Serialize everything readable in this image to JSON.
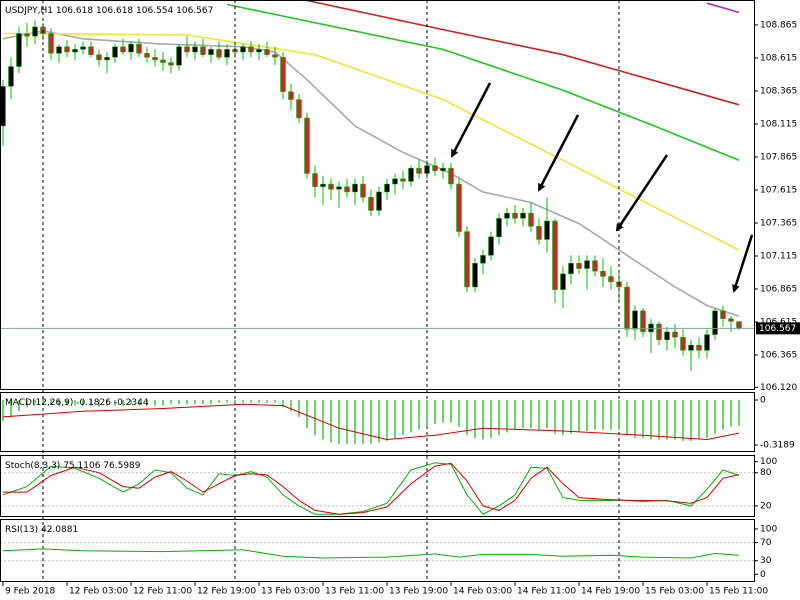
{
  "chart_data": [
    {
      "type": "candlestick",
      "title": "USDJPY,H1",
      "up_color": "#000000",
      "down_color": "#b8321f",
      "wick_color": "#00c000",
      "price_line_color": "#7fa39a",
      "xlim": [
        -0.375,
        94
      ],
      "ylim": [
        106.1,
        109.054
      ],
      "yticks": [
        108.865,
        108.615,
        108.365,
        108.115,
        107.865,
        107.615,
        107.365,
        107.115,
        106.865,
        106.615,
        106.365,
        {
          "value": 106.12,
          "label": "106.120"
        }
      ],
      "xticks": [
        {
          "value": 0,
          "label": "9 Feb 2018"
        },
        {
          "value": 8,
          "label": "12 Feb 03:00"
        },
        {
          "value": 16,
          "label": "12 Feb 11:00"
        },
        {
          "value": 24,
          "label": "12 Feb 19:00"
        },
        {
          "value": 32,
          "label": "13 Feb 03:00"
        },
        {
          "value": 40,
          "label": "13 Feb 11:00"
        },
        {
          "value": 48,
          "label": "13 Feb 19:00"
        },
        {
          "value": 56,
          "label": "14 Feb 03:00"
        },
        {
          "value": 64,
          "label": "14 Feb 11:00"
        },
        {
          "value": 72,
          "label": "14 Feb 19:00"
        },
        {
          "value": 80,
          "label": "15 Feb 03:00"
        },
        {
          "value": 88,
          "label": "15 Feb 11:00"
        }
      ],
      "day_separators": [
        5,
        29,
        53,
        77
      ],
      "candles": [
        [
          108.1,
          108.45,
          107.95,
          108.4
        ],
        [
          108.4,
          108.62,
          108.3,
          108.55
        ],
        [
          108.55,
          108.85,
          108.5,
          108.8
        ],
        [
          108.8,
          108.88,
          108.7,
          108.78
        ],
        [
          108.78,
          108.9,
          108.72,
          108.85
        ],
        [
          108.85,
          108.88,
          108.75,
          108.8
        ],
        [
          108.8,
          108.84,
          108.6,
          108.65
        ],
        [
          108.65,
          108.72,
          108.58,
          108.7
        ],
        [
          108.7,
          108.75,
          108.62,
          108.66
        ],
        [
          108.66,
          108.72,
          108.6,
          108.68
        ],
        [
          108.68,
          108.74,
          108.64,
          108.7
        ],
        [
          108.7,
          108.74,
          108.62,
          108.64
        ],
        [
          108.64,
          108.68,
          108.55,
          108.6
        ],
        [
          108.6,
          108.66,
          108.5,
          108.62
        ],
        [
          108.62,
          108.72,
          108.58,
          108.7
        ],
        [
          108.7,
          108.76,
          108.64,
          108.66
        ],
        [
          108.66,
          108.74,
          108.6,
          108.72
        ],
        [
          108.72,
          108.76,
          108.62,
          108.65
        ],
        [
          108.65,
          108.7,
          108.58,
          108.62
        ],
        [
          108.62,
          108.68,
          108.55,
          108.6
        ],
        [
          108.6,
          108.66,
          108.52,
          108.58
        ],
        [
          108.58,
          108.62,
          108.5,
          108.56
        ],
        [
          108.56,
          108.72,
          108.52,
          108.7
        ],
        [
          108.7,
          108.78,
          108.62,
          108.66
        ],
        [
          108.66,
          108.74,
          108.6,
          108.7
        ],
        [
          108.7,
          108.76,
          108.62,
          108.64
        ],
        [
          108.64,
          108.7,
          108.58,
          108.68
        ],
        [
          108.68,
          108.74,
          108.6,
          108.62
        ],
        [
          108.62,
          108.72,
          108.56,
          108.68
        ],
        [
          108.68,
          108.74,
          108.62,
          108.66
        ],
        [
          108.66,
          108.72,
          108.6,
          108.7
        ],
        [
          108.7,
          108.74,
          108.62,
          108.66
        ],
        [
          108.66,
          108.72,
          108.6,
          108.68
        ],
        [
          108.68,
          108.74,
          108.62,
          108.64
        ],
        [
          108.64,
          108.7,
          108.56,
          108.62
        ],
        [
          108.62,
          108.66,
          108.3,
          108.36
        ],
        [
          108.36,
          108.42,
          108.22,
          108.3
        ],
        [
          108.3,
          108.34,
          108.12,
          108.16
        ],
        [
          108.16,
          108.2,
          107.7,
          107.74
        ],
        [
          107.74,
          107.8,
          107.56,
          107.64
        ],
        [
          107.64,
          107.72,
          107.5,
          107.66
        ],
        [
          107.66,
          107.7,
          107.54,
          107.62
        ],
        [
          107.62,
          107.68,
          107.48,
          107.64
        ],
        [
          107.64,
          107.7,
          107.56,
          107.6
        ],
        [
          107.6,
          107.7,
          107.5,
          107.66
        ],
        [
          107.66,
          107.72,
          107.52,
          107.56
        ],
        [
          107.56,
          107.62,
          107.42,
          107.46
        ],
        [
          107.46,
          107.64,
          107.42,
          107.6
        ],
        [
          107.6,
          107.7,
          107.54,
          107.66
        ],
        [
          107.66,
          107.74,
          107.58,
          107.7
        ],
        [
          107.7,
          107.76,
          107.62,
          107.68
        ],
        [
          107.68,
          107.8,
          107.64,
          107.78
        ],
        [
          107.78,
          107.84,
          107.7,
          107.74
        ],
        [
          107.74,
          107.84,
          107.7,
          107.8
        ],
        [
          107.8,
          107.86,
          107.72,
          107.76
        ],
        [
          107.76,
          107.82,
          107.7,
          107.78
        ],
        [
          107.78,
          107.82,
          107.62,
          107.66
        ],
        [
          107.66,
          107.7,
          107.26,
          107.3
        ],
        [
          107.3,
          107.34,
          106.84,
          106.88
        ],
        [
          106.88,
          107.1,
          106.84,
          107.06
        ],
        [
          107.06,
          107.16,
          106.98,
          107.12
        ],
        [
          107.12,
          107.3,
          107.08,
          107.26
        ],
        [
          107.26,
          107.44,
          107.2,
          107.4
        ],
        [
          107.4,
          107.48,
          107.34,
          107.44
        ],
        [
          107.44,
          107.5,
          107.36,
          107.4
        ],
        [
          107.4,
          107.48,
          107.34,
          107.44
        ],
        [
          107.44,
          107.52,
          107.3,
          107.34
        ],
        [
          107.34,
          107.4,
          107.2,
          107.24
        ],
        [
          107.24,
          107.56,
          107.14,
          107.38
        ],
        [
          107.38,
          107.4,
          106.76,
          106.86
        ],
        [
          106.86,
          107.04,
          106.72,
          106.98
        ],
        [
          106.98,
          107.12,
          106.9,
          107.06
        ],
        [
          107.06,
          107.12,
          106.98,
          107.02
        ],
        [
          107.02,
          107.12,
          106.86,
          107.08
        ],
        [
          107.08,
          107.12,
          106.96,
          107.0
        ],
        [
          107.0,
          107.1,
          106.88,
          106.96
        ],
        [
          106.96,
          107.04,
          106.86,
          106.92
        ],
        [
          106.92,
          107.0,
          106.76,
          106.88
        ],
        [
          106.88,
          106.92,
          106.5,
          106.56
        ],
        [
          106.56,
          106.74,
          106.48,
          106.7
        ],
        [
          106.7,
          106.72,
          106.5,
          106.54
        ],
        [
          106.54,
          106.64,
          106.38,
          106.6
        ],
        [
          106.6,
          106.62,
          106.44,
          106.48
        ],
        [
          106.48,
          106.58,
          106.4,
          106.54
        ],
        [
          106.54,
          106.6,
          106.42,
          106.5
        ],
        [
          106.5,
          106.56,
          106.36,
          106.4
        ],
        [
          106.4,
          106.48,
          106.24,
          106.44
        ],
        [
          106.44,
          106.5,
          106.34,
          106.4
        ],
        [
          106.4,
          106.56,
          106.34,
          106.52
        ],
        [
          106.52,
          106.72,
          106.48,
          106.7
        ],
        [
          106.7,
          106.74,
          106.58,
          106.64
        ],
        [
          106.64,
          106.66,
          106.54,
          106.62
        ],
        [
          106.618,
          106.618,
          106.554,
          106.567
        ]
      ],
      "series": [
        {
          "color": "#a8a8a8",
          "x": [
            0,
            5,
            10,
            20,
            30,
            34,
            38,
            44,
            50,
            56,
            60,
            66,
            72,
            78,
            84,
            88,
            92
          ],
          "values": [
            108.76,
            108.82,
            108.76,
            108.72,
            108.7,
            108.66,
            108.45,
            108.1,
            107.9,
            107.74,
            107.6,
            107.52,
            107.36,
            107.12,
            106.88,
            106.74,
            106.66
          ]
        },
        {
          "color": "#f2e23a",
          "x": [
            0,
            23,
            39,
            55,
            70,
            81,
            92
          ],
          "values": [
            108.8,
            108.79,
            108.64,
            108.3,
            107.84,
            107.5,
            107.16
          ]
        },
        {
          "color": "#22c322",
          "x": [
            28,
            55,
            70,
            81,
            92
          ],
          "values": [
            109.02,
            108.68,
            108.37,
            108.11,
            107.84
          ]
        },
        {
          "color": "#cc2222",
          "x": [
            38,
            55,
            70,
            81,
            92
          ],
          "values": [
            109.05,
            108.83,
            108.64,
            108.45,
            108.26
          ]
        },
        {
          "color": "#9932cc",
          "x": [
            88,
            92
          ],
          "values": [
            109.03,
            108.96
          ]
        }
      ]
    },
    {
      "type": "macd",
      "title": "MACD(12,26,9)",
      "color": "#3cc43c",
      "ylim": [
        -0.3685,
        0.0567
      ],
      "yticks": [
        0,
        -0.3189
      ],
      "values": [
        -0.15,
        -0.12,
        -0.08,
        -0.05,
        -0.03,
        -0.03,
        -0.03,
        -0.04,
        -0.04,
        -0.04,
        -0.04,
        -0.04,
        -0.05,
        -0.04,
        -0.04,
        -0.04,
        -0.03,
        -0.04,
        -0.04,
        -0.04,
        -0.04,
        -0.03,
        -0.03,
        -0.03,
        -0.03,
        -0.03,
        -0.03,
        -0.02,
        -0.02,
        -0.02,
        -0.02,
        -0.02,
        -0.02,
        -0.02,
        -0.02,
        -0.05,
        -0.08,
        -0.12,
        -0.2,
        -0.25,
        -0.28,
        -0.3,
        -0.31,
        -0.31,
        -0.31,
        -0.31,
        -0.31,
        -0.3,
        -0.29,
        -0.27,
        -0.25,
        -0.23,
        -0.21,
        -0.19,
        -0.17,
        -0.16,
        -0.16,
        -0.19,
        -0.25,
        -0.27,
        -0.28,
        -0.27,
        -0.25,
        -0.23,
        -0.21,
        -0.2,
        -0.2,
        -0.21,
        -0.2,
        -0.24,
        -0.25,
        -0.24,
        -0.23,
        -0.22,
        -0.21,
        -0.21,
        -0.21,
        -0.21,
        -0.25,
        -0.27,
        -0.27,
        -0.28,
        -0.28,
        -0.28,
        -0.28,
        -0.29,
        -0.29,
        -0.28,
        -0.27,
        -0.24,
        -0.21,
        -0.19,
        -0.1826
      ],
      "signal": {
        "color": "#d00000",
        "x": [
          0,
          10,
          20,
          30,
          35,
          42,
          48,
          54,
          60,
          70,
          80,
          88,
          92
        ],
        "values": [
          -0.12,
          -0.08,
          -0.06,
          -0.03,
          -0.04,
          -0.2,
          -0.28,
          -0.25,
          -0.2,
          -0.22,
          -0.25,
          -0.28,
          -0.2344
        ]
      }
    },
    {
      "type": "stochastic",
      "title": "Stoch(8,3,3)",
      "ylim": [
        0,
        112
      ],
      "yticks": [
        100,
        80,
        20
      ],
      "levels": [
        80,
        20
      ],
      "series": [
        {
          "color": "#00b000",
          "x": [
            0,
            3,
            6,
            9,
            12,
            15,
            17,
            19,
            21,
            23,
            25,
            27,
            29,
            31,
            33,
            35,
            37,
            39,
            42,
            45,
            48,
            51,
            54,
            56,
            58,
            60,
            62,
            64,
            66,
            68,
            70,
            72,
            75,
            78,
            80,
            83,
            86,
            88,
            90,
            92
          ],
          "values": [
            40,
            55,
            92,
            88,
            70,
            45,
            60,
            85,
            80,
            52,
            40,
            78,
            75,
            82,
            72,
            40,
            20,
            5,
            5,
            10,
            25,
            85,
            98,
            95,
            40,
            5,
            20,
            40,
            90,
            88,
            35,
            30,
            30,
            30,
            28,
            30,
            20,
            50,
            85,
            75.1106
          ]
        },
        {
          "color": "#d00000",
          "x": [
            0,
            3,
            6,
            9,
            12,
            15,
            17,
            19,
            21,
            23,
            25,
            27,
            29,
            31,
            33,
            35,
            37,
            39,
            42,
            45,
            48,
            51,
            54,
            56,
            58,
            60,
            62,
            64,
            66,
            68,
            70,
            72,
            75,
            78,
            80,
            83,
            86,
            88,
            90,
            92
          ],
          "values": [
            45,
            45,
            75,
            90,
            80,
            55,
            52,
            72,
            82,
            65,
            45,
            60,
            75,
            78,
            76,
            55,
            30,
            12,
            5,
            8,
            18,
            60,
            92,
            97,
            65,
            20,
            12,
            30,
            70,
            90,
            60,
            35,
            32,
            30,
            30,
            29,
            25,
            35,
            70,
            76.5989
          ]
        }
      ]
    },
    {
      "type": "rsi",
      "title": "RSI(13)",
      "ylim": [
        -17,
        122
      ],
      "yticks": [
        100,
        70,
        30,
        0
      ],
      "levels": [
        70,
        30
      ],
      "series": [
        {
          "color": "#00b000",
          "x": [
            0,
            5,
            10,
            20,
            30,
            35,
            40,
            48,
            54,
            57,
            60,
            66,
            70,
            76,
            80,
            86,
            89,
            92
          ],
          "values": [
            52,
            56,
            52,
            50,
            54,
            40,
            36,
            38,
            45,
            38,
            44,
            44,
            40,
            42,
            38,
            36,
            46,
            42.0881
          ]
        }
      ]
    }
  ]
}
